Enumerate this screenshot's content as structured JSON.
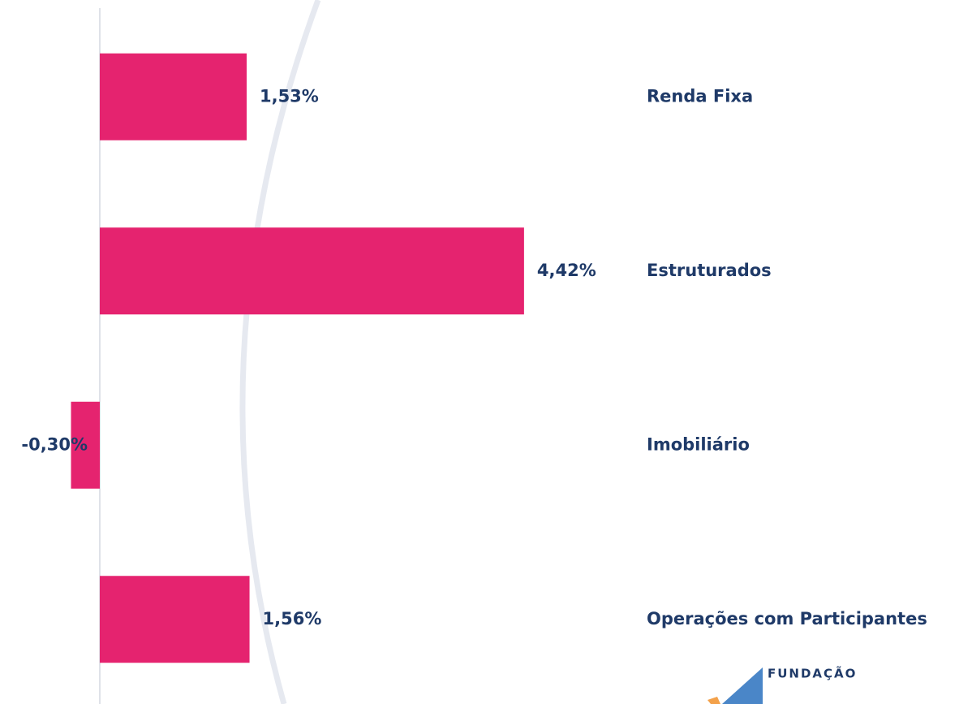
{
  "chart_data": {
    "type": "bar",
    "orientation": "horizontal",
    "categories": [
      "Renda Fixa",
      "Estruturados",
      "Imobiliário",
      "Operações com Participantes"
    ],
    "values": [
      1.53,
      4.42,
      -0.3,
      1.56
    ],
    "value_labels": [
      "1,53%",
      "4,42%",
      "-0,30%",
      "1,56%"
    ],
    "color": "#e5236f"
  },
  "logo": {
    "text": "FUNDAÇÃO"
  }
}
